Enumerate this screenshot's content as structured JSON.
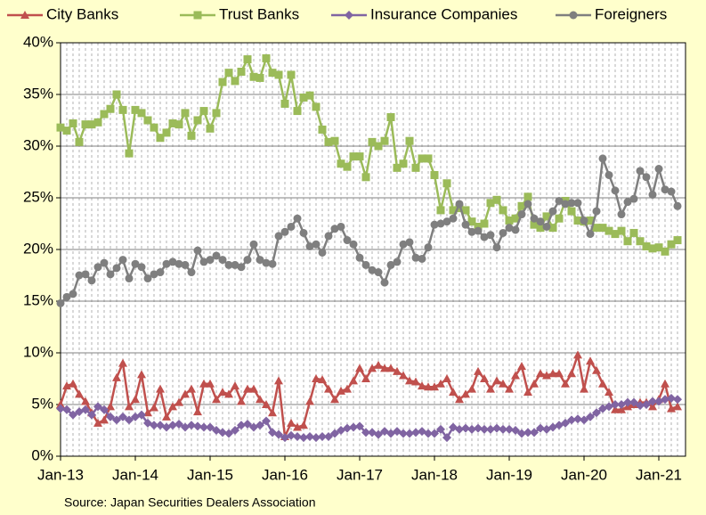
{
  "chart_data": {
    "type": "line",
    "source": "Source: Japan Securities Dealers Association",
    "categories": [
      "Jan-13",
      null,
      null,
      null,
      null,
      null,
      null,
      null,
      null,
      null,
      null,
      null,
      "Jan-14",
      null,
      null,
      null,
      null,
      null,
      null,
      null,
      null,
      null,
      null,
      null,
      "Jan-15",
      null,
      null,
      null,
      null,
      null,
      null,
      null,
      null,
      null,
      null,
      null,
      "Jan-16",
      null,
      null,
      null,
      null,
      null,
      null,
      null,
      null,
      null,
      null,
      null,
      "Jan-17",
      null,
      null,
      null,
      null,
      null,
      null,
      null,
      null,
      null,
      null,
      null,
      "Jan-18",
      null,
      null,
      null,
      null,
      null,
      null,
      null,
      null,
      null,
      null,
      null,
      "Jan-19",
      null,
      null,
      null,
      null,
      null,
      null,
      null,
      null,
      null,
      null,
      null,
      "Jan-20",
      null,
      null,
      null,
      null,
      null,
      null,
      null,
      null,
      null,
      null,
      null,
      "Jan-21",
      null,
      null,
      null
    ],
    "ylim": [
      0,
      40
    ],
    "yticks": [
      {
        "value": 0,
        "label": "0%"
      },
      {
        "value": 5,
        "label": "5%"
      },
      {
        "value": 10,
        "label": "10%"
      },
      {
        "value": 15,
        "label": "15%"
      },
      {
        "value": 20,
        "label": "20%"
      },
      {
        "value": 25,
        "label": "25%"
      },
      {
        "value": 30,
        "label": "30%"
      },
      {
        "value": 35,
        "label": "35%"
      },
      {
        "value": 40,
        "label": "40%"
      }
    ],
    "grid": true,
    "legend": "top",
    "series": [
      {
        "name": "City Banks",
        "color": "#c0504d",
        "marker": "triangle",
        "values": [
          5.0,
          6.8,
          7.0,
          6.0,
          5.3,
          4.2,
          3.2,
          3.5,
          4.8,
          7.6,
          9.0,
          4.8,
          5.5,
          7.9,
          4.2,
          4.7,
          6.5,
          3.8,
          4.8,
          5.2,
          6.0,
          6.5,
          4.3,
          7.0,
          7.0,
          5.5,
          6.2,
          6.0,
          6.8,
          5.3,
          6.5,
          6.5,
          5.5,
          5.0,
          4.2,
          7.3,
          1.9,
          3.2,
          2.8,
          3.0,
          5.3,
          7.5,
          7.4,
          6.5,
          5.5,
          6.3,
          6.5,
          7.3,
          8.5,
          7.5,
          8.5,
          8.8,
          8.5,
          8.5,
          8.2,
          7.8,
          7.3,
          7.2,
          6.8,
          6.7,
          6.7,
          7.0,
          7.5,
          6.2,
          5.5,
          6.0,
          6.5,
          8.2,
          7.5,
          6.5,
          7.3,
          7.0,
          6.5,
          7.8,
          8.7,
          6.2,
          7.0,
          8.0,
          7.8,
          8.0,
          8.0,
          7.0,
          8.0,
          9.8,
          6.5,
          9.2,
          8.3,
          7.0,
          6.2,
          4.5,
          4.5,
          4.8,
          5.0,
          5.2,
          5.2,
          4.8,
          5.5,
          7.0,
          4.6,
          4.8
        ]
      },
      {
        "name": "Trust Banks",
        "color": "#9bbb59",
        "marker": "square",
        "values": [
          31.8,
          31.5,
          32.2,
          30.4,
          32.1,
          32.1,
          32.3,
          33.1,
          33.6,
          35.0,
          33.5,
          29.3,
          33.5,
          33.2,
          32.5,
          31.8,
          30.8,
          31.3,
          32.2,
          32.1,
          33.2,
          31.0,
          32.5,
          33.4,
          31.7,
          33.2,
          36.2,
          37.1,
          36.3,
          37.2,
          38.4,
          36.7,
          36.6,
          38.5,
          37.1,
          36.9,
          34.1,
          36.9,
          33.4,
          34.7,
          34.9,
          33.8,
          31.6,
          30.4,
          30.5,
          28.3,
          28.0,
          29.0,
          29.0,
          27.0,
          30.4,
          30.0,
          30.5,
          32.8,
          27.9,
          28.3,
          30.5,
          27.9,
          28.8,
          28.8,
          27.2,
          23.8,
          26.4,
          23.8,
          24.0,
          23.8,
          22.7,
          22.2,
          22.5,
          24.5,
          24.8,
          23.8,
          22.8,
          23.0,
          24.2,
          25.1,
          22.4,
          22.1,
          23.2,
          22.1,
          23.0,
          24.7,
          23.7,
          22.8,
          22.7,
          22.8,
          22.1,
          22.1,
          21.8,
          21.5,
          21.8,
          20.8,
          21.6,
          20.8,
          20.3,
          20.1,
          20.2,
          19.8,
          20.5,
          20.9
        ]
      },
      {
        "name": "Insurance Companies",
        "color": "#8064a2",
        "marker": "diamond",
        "values": [
          4.6,
          4.5,
          4.0,
          4.3,
          4.5,
          4.0,
          4.8,
          4.5,
          3.8,
          3.5,
          3.8,
          3.5,
          3.8,
          4.0,
          3.2,
          3.0,
          3.0,
          2.8,
          3.0,
          3.1,
          2.8,
          3.0,
          2.9,
          2.8,
          2.8,
          2.5,
          2.3,
          2.2,
          2.5,
          3.0,
          3.1,
          2.8,
          3.0,
          3.4,
          2.3,
          2.1,
          1.8,
          2.0,
          1.9,
          1.8,
          1.9,
          1.8,
          1.9,
          1.9,
          2.2,
          2.5,
          2.7,
          2.8,
          2.9,
          2.3,
          2.3,
          2.1,
          2.4,
          2.2,
          2.4,
          2.2,
          2.2,
          2.3,
          2.4,
          2.2,
          2.2,
          2.6,
          1.8,
          2.8,
          2.6,
          2.7,
          2.6,
          2.7,
          2.6,
          2.6,
          2.7,
          2.6,
          2.6,
          2.5,
          2.2,
          2.3,
          2.3,
          2.7,
          2.6,
          2.8,
          3.0,
          3.2,
          3.5,
          3.6,
          3.5,
          3.8,
          4.2,
          4.6,
          4.8,
          5.0,
          5.0,
          5.2,
          5.2,
          4.9,
          5.0,
          5.3,
          5.3,
          5.5,
          5.6,
          5.5
        ]
      },
      {
        "name": "Foreigners",
        "color": "#7f7f7f",
        "marker": "circle",
        "values": [
          14.8,
          15.4,
          15.7,
          17.5,
          17.6,
          17.0,
          18.3,
          18.7,
          17.6,
          18.2,
          19.0,
          17.2,
          18.6,
          18.3,
          17.2,
          17.6,
          17.8,
          18.6,
          18.8,
          18.6,
          18.5,
          17.8,
          19.9,
          18.8,
          19.0,
          19.4,
          19.0,
          18.5,
          18.5,
          18.3,
          19.0,
          20.5,
          19.0,
          18.7,
          18.6,
          21.3,
          21.7,
          22.2,
          23.0,
          21.6,
          20.3,
          20.5,
          19.7,
          21.3,
          22.0,
          22.2,
          20.9,
          20.5,
          19.2,
          18.5,
          18.0,
          17.8,
          16.8,
          18.5,
          18.8,
          20.5,
          20.7,
          19.2,
          19.1,
          20.2,
          22.4,
          22.5,
          22.7,
          23.0,
          24.4,
          22.4,
          21.7,
          21.8,
          21.2,
          21.4,
          20.2,
          21.6,
          22.1,
          21.9,
          23.4,
          24.4,
          23.0,
          22.7,
          22.2,
          23.7,
          24.7,
          24.4,
          24.5,
          24.5,
          22.8,
          21.5,
          23.7,
          28.8,
          27.2,
          25.7,
          23.4,
          24.6,
          24.9,
          27.6,
          27.0,
          25.3,
          27.8,
          25.8,
          25.6,
          24.2
        ]
      }
    ]
  }
}
